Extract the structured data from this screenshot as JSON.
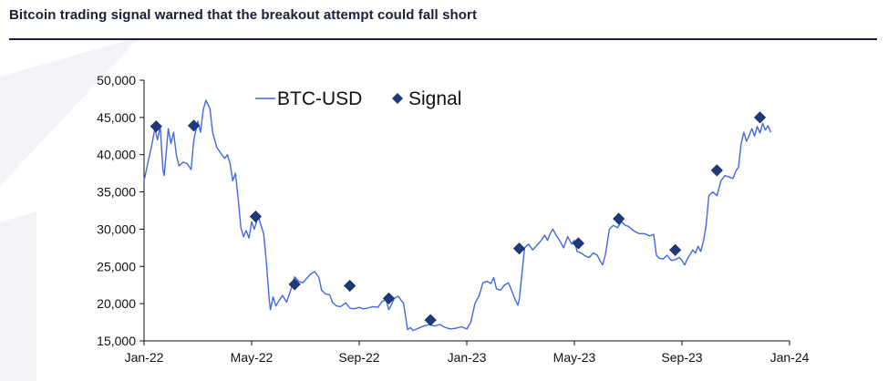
{
  "header": {
    "title": "Bitcoin trading signal warned that the breakout attempt could fall short"
  },
  "colors": {
    "line": "#4169e1",
    "marker": "#1f3a7a",
    "axis": "#111111",
    "title": "#1b1f3b"
  },
  "chart_data": {
    "type": "line",
    "title": "Bitcoin trading signal warned that the breakout attempt could fall short",
    "xlabel": "",
    "ylabel": "",
    "ylim": [
      15000,
      50000
    ],
    "xlim_months": [
      0,
      24
    ],
    "grid": false,
    "legend_placement": "top-center",
    "y_ticks": [
      {
        "value": 15000,
        "label": "15,000"
      },
      {
        "value": 20000,
        "label": "20,000"
      },
      {
        "value": 25000,
        "label": "25,000"
      },
      {
        "value": 30000,
        "label": "30,000"
      },
      {
        "value": 35000,
        "label": "35,000"
      },
      {
        "value": 40000,
        "label": "40,000"
      },
      {
        "value": 45000,
        "label": "45,000"
      },
      {
        "value": 50000,
        "label": "50,000"
      }
    ],
    "x_ticks": [
      {
        "month": 0,
        "label": "Jan-22"
      },
      {
        "month": 4,
        "label": "May-22"
      },
      {
        "month": 8,
        "label": "Sep-22"
      },
      {
        "month": 12,
        "label": "Jan-23"
      },
      {
        "month": 16,
        "label": "May-23"
      },
      {
        "month": 20,
        "label": "Sep-23"
      },
      {
        "month": 24,
        "label": "Jan-24"
      }
    ],
    "series": [
      {
        "name": "BTC-USD",
        "type": "line",
        "points": [
          [
            0.0,
            36500
          ],
          [
            0.15,
            39000
          ],
          [
            0.3,
            41500
          ],
          [
            0.4,
            43500
          ],
          [
            0.5,
            42000
          ],
          [
            0.6,
            43800
          ],
          [
            0.7,
            38000
          ],
          [
            0.75,
            37200
          ],
          [
            0.9,
            43500
          ],
          [
            1.0,
            41500
          ],
          [
            1.1,
            43000
          ],
          [
            1.2,
            40000
          ],
          [
            1.3,
            38500
          ],
          [
            1.45,
            39000
          ],
          [
            1.6,
            38800
          ],
          [
            1.75,
            38000
          ],
          [
            1.85,
            42000
          ],
          [
            2.0,
            44500
          ],
          [
            2.1,
            43000
          ],
          [
            2.2,
            46000
          ],
          [
            2.3,
            47300
          ],
          [
            2.45,
            46200
          ],
          [
            2.55,
            43000
          ],
          [
            2.7,
            41000
          ],
          [
            2.85,
            40200
          ],
          [
            3.0,
            39500
          ],
          [
            3.1,
            40000
          ],
          [
            3.2,
            38800
          ],
          [
            3.3,
            36500
          ],
          [
            3.4,
            37500
          ],
          [
            3.5,
            34000
          ],
          [
            3.6,
            30200
          ],
          [
            3.7,
            29000
          ],
          [
            3.8,
            29800
          ],
          [
            3.9,
            28800
          ],
          [
            4.0,
            31000
          ],
          [
            4.1,
            30000
          ],
          [
            4.25,
            31800
          ],
          [
            4.35,
            30500
          ],
          [
            4.45,
            29300
          ],
          [
            4.55,
            25500
          ],
          [
            4.65,
            20700
          ],
          [
            4.7,
            19200
          ],
          [
            4.8,
            20900
          ],
          [
            4.9,
            19700
          ],
          [
            5.0,
            20300
          ],
          [
            5.15,
            21100
          ],
          [
            5.3,
            20200
          ],
          [
            5.45,
            21800
          ],
          [
            5.6,
            23600
          ],
          [
            5.75,
            23000
          ],
          [
            5.9,
            22800
          ],
          [
            6.0,
            23200
          ],
          [
            6.2,
            24000
          ],
          [
            6.35,
            24300
          ],
          [
            6.5,
            23500
          ],
          [
            6.6,
            21800
          ],
          [
            6.75,
            21300
          ],
          [
            6.9,
            21200
          ],
          [
            7.0,
            20200
          ],
          [
            7.15,
            19700
          ],
          [
            7.3,
            19600
          ],
          [
            7.5,
            20100
          ],
          [
            7.65,
            19400
          ],
          [
            7.8,
            19300
          ],
          [
            8.0,
            19500
          ],
          [
            8.15,
            19300
          ],
          [
            8.3,
            19400
          ],
          [
            8.5,
            19600
          ],
          [
            8.7,
            19500
          ],
          [
            8.85,
            20300
          ],
          [
            9.0,
            20500
          ],
          [
            9.1,
            19200
          ],
          [
            9.2,
            19900
          ],
          [
            9.3,
            20700
          ],
          [
            9.45,
            21000
          ],
          [
            9.55,
            20500
          ],
          [
            9.65,
            20000
          ],
          [
            9.8,
            16500
          ],
          [
            9.9,
            16800
          ],
          [
            10.0,
            16400
          ],
          [
            10.2,
            16700
          ],
          [
            10.4,
            17000
          ],
          [
            10.6,
            17200
          ],
          [
            10.8,
            17000
          ],
          [
            11.0,
            17200
          ],
          [
            11.2,
            16800
          ],
          [
            11.4,
            16600
          ],
          [
            11.6,
            16700
          ],
          [
            11.8,
            16900
          ],
          [
            12.0,
            16600
          ],
          [
            12.15,
            17500
          ],
          [
            12.3,
            20000
          ],
          [
            12.45,
            21000
          ],
          [
            12.6,
            22800
          ],
          [
            12.75,
            23000
          ],
          [
            12.9,
            22700
          ],
          [
            13.0,
            23500
          ],
          [
            13.1,
            22000
          ],
          [
            13.25,
            21800
          ],
          [
            13.4,
            22500
          ],
          [
            13.55,
            22800
          ],
          [
            13.7,
            21500
          ],
          [
            13.8,
            20500
          ],
          [
            13.9,
            19800
          ],
          [
            13.95,
            20500
          ],
          [
            14.05,
            24000
          ],
          [
            14.15,
            27500
          ],
          [
            14.3,
            28000
          ],
          [
            14.45,
            27200
          ],
          [
            14.6,
            27800
          ],
          [
            14.75,
            28400
          ],
          [
            14.9,
            29200
          ],
          [
            15.0,
            28500
          ],
          [
            15.1,
            29400
          ],
          [
            15.2,
            30000
          ],
          [
            15.3,
            29300
          ],
          [
            15.45,
            28500
          ],
          [
            15.6,
            27500
          ],
          [
            15.75,
            29000
          ],
          [
            15.9,
            28000
          ],
          [
            16.0,
            28500
          ],
          [
            16.1,
            27000
          ],
          [
            16.25,
            26800
          ],
          [
            16.4,
            26400
          ],
          [
            16.55,
            26200
          ],
          [
            16.7,
            26800
          ],
          [
            16.85,
            26500
          ],
          [
            16.95,
            25800
          ],
          [
            17.05,
            25200
          ],
          [
            17.15,
            26500
          ],
          [
            17.3,
            30000
          ],
          [
            17.45,
            30500
          ],
          [
            17.6,
            30200
          ],
          [
            17.75,
            31000
          ],
          [
            17.9,
            30500
          ],
          [
            18.0,
            30400
          ],
          [
            18.2,
            29800
          ],
          [
            18.4,
            29400
          ],
          [
            18.6,
            29400
          ],
          [
            18.8,
            29100
          ],
          [
            18.95,
            29300
          ],
          [
            19.05,
            26500
          ],
          [
            19.15,
            26100
          ],
          [
            19.3,
            26000
          ],
          [
            19.45,
            26500
          ],
          [
            19.6,
            25800
          ],
          [
            19.75,
            25900
          ],
          [
            19.9,
            26200
          ],
          [
            20.0,
            25800
          ],
          [
            20.1,
            25200
          ],
          [
            20.2,
            26000
          ],
          [
            20.3,
            26600
          ],
          [
            20.4,
            27200
          ],
          [
            20.5,
            26800
          ],
          [
            20.6,
            27700
          ],
          [
            20.7,
            27000
          ],
          [
            20.8,
            28400
          ],
          [
            20.9,
            30500
          ],
          [
            21.0,
            34500
          ],
          [
            21.15,
            35000
          ],
          [
            21.3,
            34500
          ],
          [
            21.45,
            36500
          ],
          [
            21.6,
            37200
          ],
          [
            21.75,
            37000
          ],
          [
            21.9,
            36800
          ],
          [
            22.0,
            37800
          ],
          [
            22.1,
            38300
          ],
          [
            22.2,
            41500
          ],
          [
            22.3,
            43000
          ],
          [
            22.4,
            41800
          ],
          [
            22.5,
            42600
          ],
          [
            22.6,
            43500
          ],
          [
            22.7,
            42500
          ],
          [
            22.8,
            43800
          ],
          [
            22.9,
            42900
          ],
          [
            23.0,
            44200
          ],
          [
            23.1,
            43300
          ],
          [
            23.2,
            43900
          ],
          [
            23.3,
            43000
          ]
        ]
      },
      {
        "name": "Signal",
        "type": "scatter",
        "marker": "diamond",
        "points": [
          [
            0.45,
            43800
          ],
          [
            1.85,
            43900
          ],
          [
            4.15,
            31700
          ],
          [
            5.6,
            22600
          ],
          [
            7.65,
            22400
          ],
          [
            9.1,
            20700
          ],
          [
            10.65,
            17800
          ],
          [
            13.95,
            27400
          ],
          [
            16.15,
            28100
          ],
          [
            17.65,
            31400
          ],
          [
            19.75,
            27200
          ],
          [
            21.3,
            37900
          ],
          [
            22.9,
            45000
          ]
        ]
      }
    ],
    "legend": [
      {
        "label": "BTC-USD",
        "kind": "line"
      },
      {
        "label": "Signal",
        "kind": "diamond"
      }
    ]
  }
}
